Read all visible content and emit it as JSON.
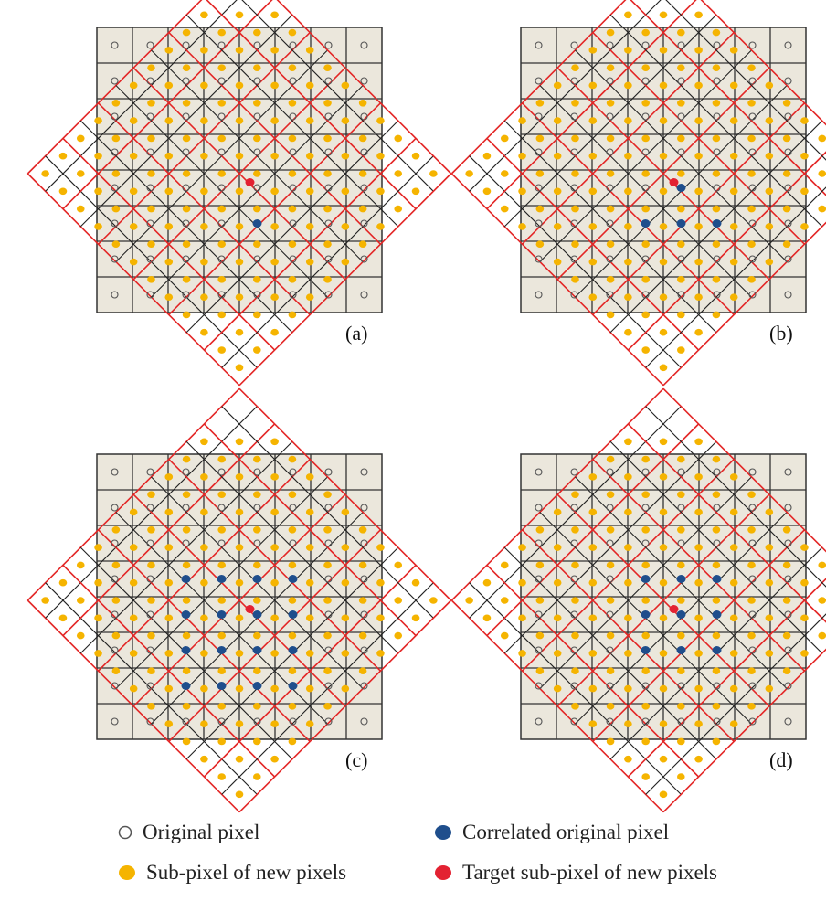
{
  "panels": [
    {
      "label": "(a)",
      "correlated": [
        [
          4,
          5
        ]
      ],
      "target": [
        4,
        4
      ]
    },
    {
      "label": "(b)",
      "correlated": [
        [
          3,
          5
        ],
        [
          4,
          5
        ],
        [
          5,
          5
        ],
        [
          4,
          4
        ]
      ],
      "target": [
        4,
        4
      ]
    },
    {
      "label": "(c)",
      "correlated": [
        [
          2,
          3
        ],
        [
          3,
          3
        ],
        [
          4,
          3
        ],
        [
          5,
          3
        ],
        [
          2,
          4
        ],
        [
          3,
          4
        ],
        [
          4,
          4
        ],
        [
          5,
          4
        ],
        [
          2,
          5
        ],
        [
          3,
          5
        ],
        [
          4,
          5
        ],
        [
          5,
          5
        ],
        [
          2,
          6
        ],
        [
          3,
          6
        ],
        [
          4,
          6
        ],
        [
          5,
          6
        ]
      ],
      "target": [
        4,
        4
      ]
    },
    {
      "label": "(d)",
      "correlated": [
        [
          3,
          3
        ],
        [
          4,
          3
        ],
        [
          5,
          3
        ],
        [
          3,
          4
        ],
        [
          4,
          4
        ],
        [
          5,
          4
        ],
        [
          3,
          5
        ],
        [
          4,
          5
        ],
        [
          5,
          5
        ]
      ],
      "target": [
        4,
        4
      ]
    }
  ],
  "legend": {
    "original": "Original pixel",
    "correlated": "Correlated original pixel",
    "subpixel": "Sub-pixel of new pixels",
    "target": "Target sub-pixel of new pixels"
  },
  "colors": {
    "background_fill": "#ebe7dc",
    "grid_line": "#333333",
    "rotated_grid": "#222222",
    "new_pixel_boundary": "#e32626",
    "subpixel": "#f5b400",
    "correlated": "#1f4e8c",
    "target": "#e32232",
    "original_marker": "#555555"
  }
}
